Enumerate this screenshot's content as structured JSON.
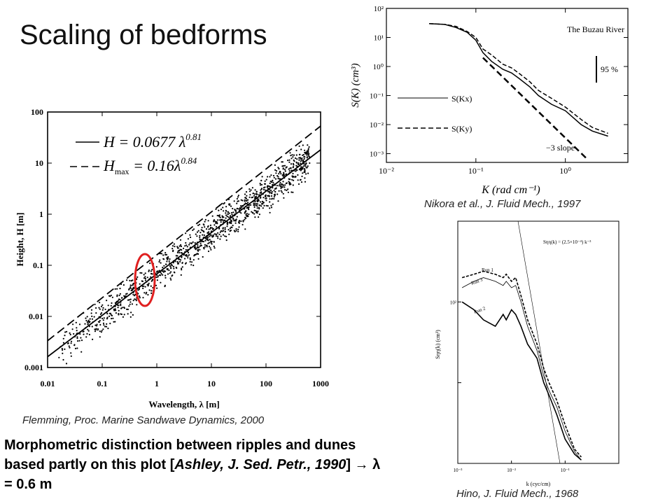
{
  "slide": {
    "title": "Scaling of bedforms",
    "body": {
      "lead": "Morphometric distinction between ripples and dunes based partly on this plot [",
      "cite": "Ashley, J. Sed. Petr., 1990",
      "tail": "] → λ = 0.6 m"
    }
  },
  "chart_data": [
    {
      "id": "flemming",
      "type": "scatter",
      "caption": "Flemming, Proc. Marine Sandwave Dynamics, 2000",
      "xlabel": "Wavelength, λ [m]",
      "ylabel": "Height, H [m]",
      "x_scale": "log",
      "y_scale": "log",
      "xlim": [
        0.01,
        1000
      ],
      "ylim": [
        0.001,
        100
      ],
      "x_ticks": [
        "0.01",
        "0.1",
        "1",
        "10",
        "100",
        "1000"
      ],
      "y_ticks": [
        "0.001",
        "0.01",
        "0.1",
        "1",
        "10",
        "100"
      ],
      "series": [
        {
          "name": "H = 0.0677 λ^0.81",
          "style": "solid",
          "coef": 0.0677,
          "exp": 0.81
        },
        {
          "name": "H_max = 0.16 λ^0.84",
          "style": "dashed",
          "coef": 0.16,
          "exp": 0.84
        }
      ],
      "legend": [
        "H = 0.0677 λ",
        "0.81",
        "H",
        "max",
        " = 0.16λ",
        "0.84"
      ],
      "scatter_count": 1200,
      "highlight": {
        "x": 0.6,
        "color": "#e02020"
      }
    },
    {
      "id": "nikora",
      "type": "line",
      "caption": "Nikora et al., J. Fluid Mech., 1997",
      "title": "The Buzau River",
      "xlabel": "K (rad cm⁻¹)",
      "ylabel": "S(K) (cm³)",
      "x_scale": "log",
      "y_scale": "log",
      "xlim": [
        0.01,
        5
      ],
      "ylim": [
        0.0005,
        100
      ],
      "x_ticks": [
        "10⁻²",
        "10⁻¹",
        "10⁰"
      ],
      "y_ticks": [
        "10⁻³",
        "10⁻²",
        "10⁻¹",
        "10⁰",
        "10¹",
        "10²"
      ],
      "legend": [
        "S(Kx)",
        "S(Ky)"
      ],
      "annotations": [
        "95 %",
        "−3 slope"
      ],
      "series": [
        {
          "name": "S(Kx)",
          "style": "solid",
          "x": [
            0.03,
            0.045,
            0.06,
            0.08,
            0.1,
            0.12,
            0.15,
            0.2,
            0.25,
            0.3,
            0.4,
            0.5,
            0.7,
            1.0,
            1.5,
            2.0,
            3.0
          ],
          "y": [
            30,
            28,
            22,
            15,
            8,
            3,
            1.5,
            0.8,
            0.6,
            0.4,
            0.2,
            0.1,
            0.05,
            0.03,
            0.01,
            0.006,
            0.004
          ]
        },
        {
          "name": "S(Ky)",
          "style": "dashed",
          "x": [
            0.03,
            0.045,
            0.06,
            0.08,
            0.1,
            0.12,
            0.15,
            0.2,
            0.25,
            0.3,
            0.4,
            0.5,
            0.7,
            1.0,
            1.5,
            2.0,
            3.0
          ],
          "y": [
            30,
            28,
            24,
            16,
            10,
            4,
            2.5,
            1.2,
            0.9,
            0.6,
            0.3,
            0.15,
            0.08,
            0.04,
            0.015,
            0.008,
            0.005
          ]
        },
        {
          "name": "−3 slope",
          "style": "dashed",
          "x": [
            0.12,
            1.8
          ],
          "y": [
            2,
            0.0006
          ]
        }
      ]
    },
    {
      "id": "hino",
      "type": "line",
      "caption": "Hino, J. Fluid Mech., 1968",
      "xlabel": "k (cyc/cm)",
      "ylabel": "Sηη(k) (cm³)",
      "x_scale": "log",
      "y_scale": "log",
      "xlim": [
        0.001,
        1
      ],
      "ylim": [
        0.01,
        10
      ],
      "x_ticks": [
        "10⁻³",
        "10⁻²",
        "10⁻¹"
      ],
      "y_ticks": [
        "10²"
      ],
      "annotation": "Sηη(k) = (2.5×10⁻⁴) k⁻³",
      "series": [
        {
          "name": "Run 1",
          "style": "dashed",
          "x": [
            0.0012,
            0.002,
            0.003,
            0.005,
            0.007,
            0.008,
            0.01,
            0.012,
            0.015,
            0.02,
            0.03,
            0.04,
            0.05,
            0.07,
            0.1,
            0.15,
            0.2
          ],
          "y": [
            2,
            2.2,
            2.4,
            2.2,
            2.0,
            2.2,
            1.8,
            2.0,
            1.2,
            0.6,
            0.3,
            0.15,
            0.1,
            0.06,
            0.03,
            0.015,
            0.012
          ]
        },
        {
          "name": "Run 3",
          "style": "thin",
          "x": [
            0.0012,
            0.002,
            0.003,
            0.005,
            0.007,
            0.008,
            0.01,
            0.012,
            0.015,
            0.02,
            0.03,
            0.04,
            0.05,
            0.07,
            0.1,
            0.15,
            0.2
          ],
          "y": [
            1.5,
            1.8,
            2.0,
            1.8,
            1.6,
            1.8,
            1.5,
            1.6,
            1.0,
            0.5,
            0.25,
            0.12,
            0.08,
            0.05,
            0.025,
            0.014,
            0.011
          ]
        },
        {
          "name": "Run 2",
          "style": "solid",
          "x": [
            0.0012,
            0.002,
            0.003,
            0.005,
            0.007,
            0.008,
            0.01,
            0.012,
            0.015,
            0.02,
            0.03,
            0.04,
            0.05,
            0.07,
            0.1,
            0.15,
            0.2
          ],
          "y": [
            1.0,
            0.8,
            0.6,
            0.5,
            0.7,
            0.6,
            0.8,
            0.7,
            0.5,
            0.3,
            0.2,
            0.1,
            0.07,
            0.04,
            0.02,
            0.013,
            0.011
          ]
        }
      ]
    }
  ]
}
